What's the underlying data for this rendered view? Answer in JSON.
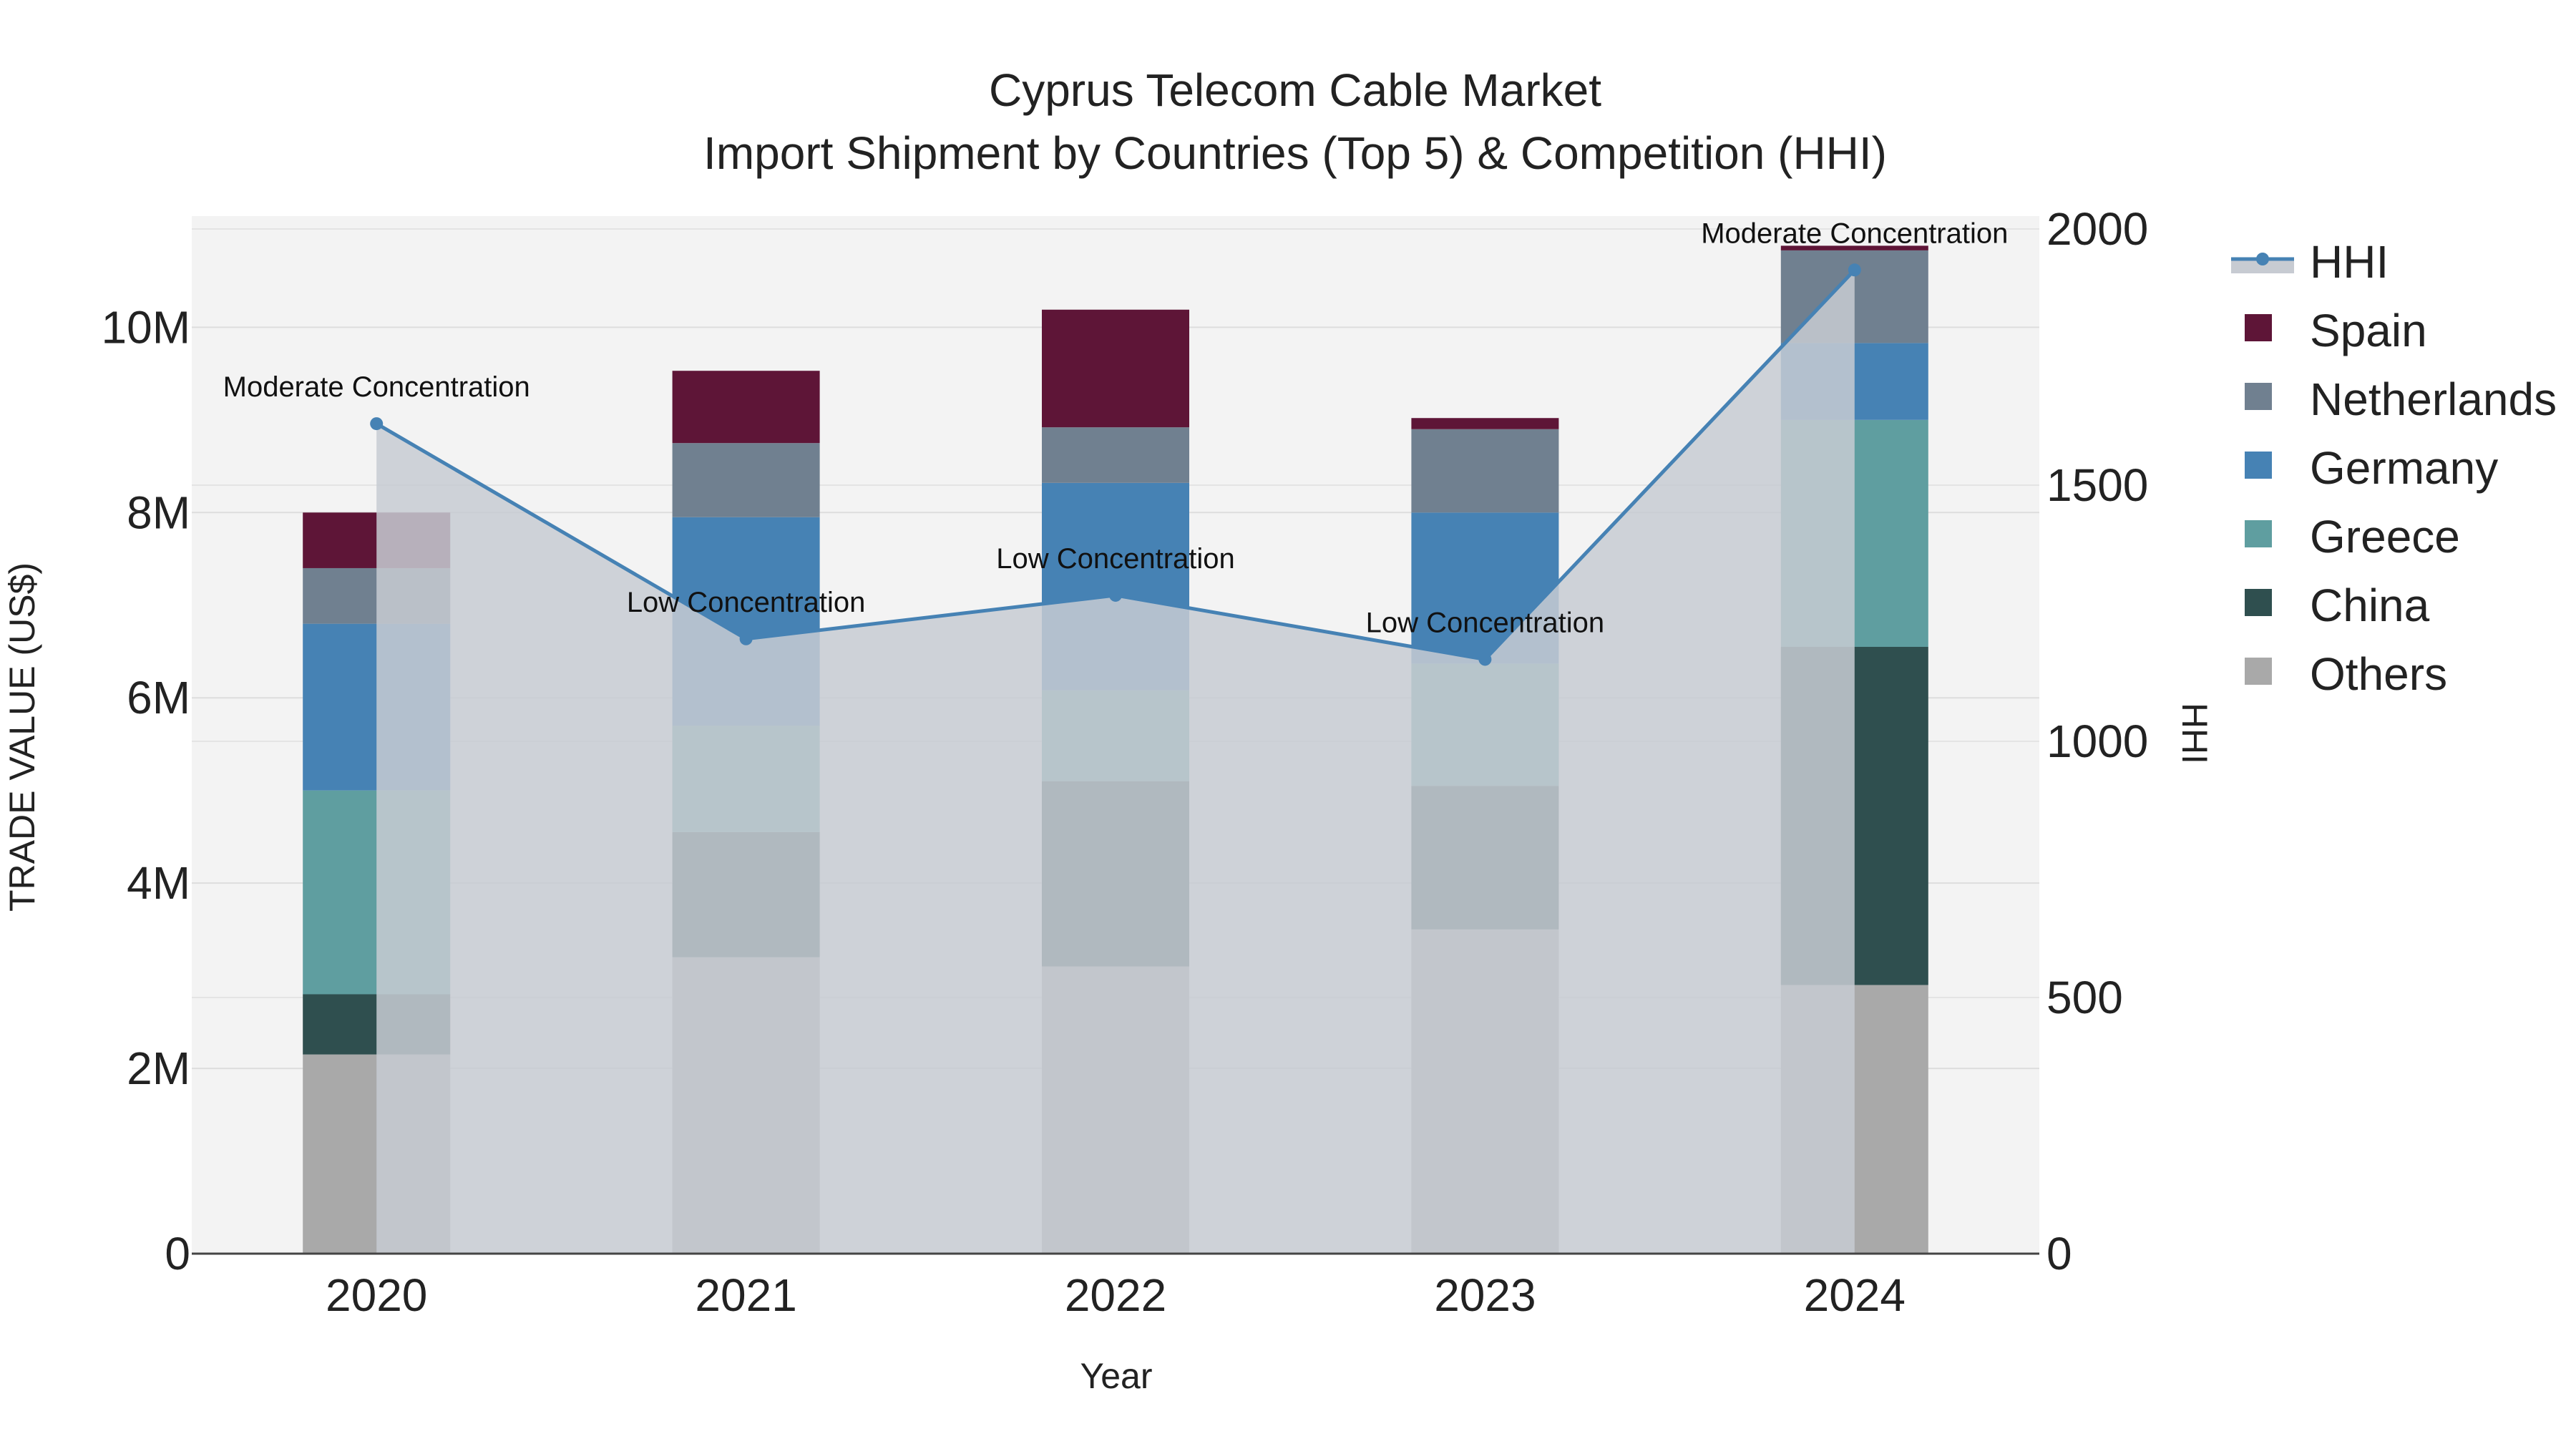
{
  "chart_data": {
    "type": "bar",
    "title_line1": "Cyprus Telecom Cable Market",
    "title_line2": "Import Shipment by Countries (Top 5) & Competition (HHI)",
    "xlabel": "Year",
    "ylabel": "TRADE VALUE (US$)",
    "y2label": "HHI",
    "ylim": [
      0,
      11200000
    ],
    "y2lim": [
      0,
      2000
    ],
    "categories": [
      "2020",
      "2021",
      "2022",
      "2023",
      "2024"
    ],
    "yticks": [
      {
        "value": 0,
        "label": "0"
      },
      {
        "value": 2000000,
        "label": "2M"
      },
      {
        "value": 4000000,
        "label": "4M"
      },
      {
        "value": 6000000,
        "label": "6M"
      },
      {
        "value": 8000000,
        "label": "8M"
      },
      {
        "value": 10000000,
        "label": "10M"
      }
    ],
    "y2ticks": [
      {
        "value": 0,
        "label": "0"
      },
      {
        "value": 500,
        "label": "500"
      },
      {
        "value": 1000,
        "label": "1000"
      },
      {
        "value": 1500,
        "label": "1500"
      },
      {
        "value": 2000,
        "label": "2000"
      }
    ],
    "series": [
      {
        "name": "Others",
        "color": "#a9a9a9",
        "values": [
          2150000,
          3200000,
          3100000,
          3500000,
          2900000
        ]
      },
      {
        "name": "China",
        "color": "#2f4f4f",
        "values": [
          650000,
          1350000,
          2000000,
          1550000,
          3650000
        ]
      },
      {
        "name": "Greece",
        "color": "#5f9ea0",
        "values": [
          2200000,
          1150000,
          980000,
          1320000,
          2450000
        ]
      },
      {
        "name": "Germany",
        "color": "#4682b4",
        "values": [
          1800000,
          2250000,
          2240000,
          1630000,
          830000
        ]
      },
      {
        "name": "Netherlands",
        "color": "#708090",
        "values": [
          600000,
          800000,
          600000,
          900000,
          1000000
        ]
      },
      {
        "name": "Spain",
        "color": "#5e1537",
        "values": [
          600000,
          780000,
          1270000,
          120000,
          50000
        ]
      }
    ],
    "hhi": {
      "name": "HHI",
      "color": "#4682b4",
      "fill": "#c7cbd2",
      "values": [
        1620,
        1200,
        1285,
        1160,
        1920
      ],
      "annotations": [
        "Moderate Concentration",
        "Low Concentration",
        "Low Concentration",
        "Low Concentration",
        "Moderate Concentration"
      ]
    },
    "legend": [
      "HHI",
      "Spain",
      "Netherlands",
      "Germany",
      "Greece",
      "China",
      "Others"
    ]
  }
}
